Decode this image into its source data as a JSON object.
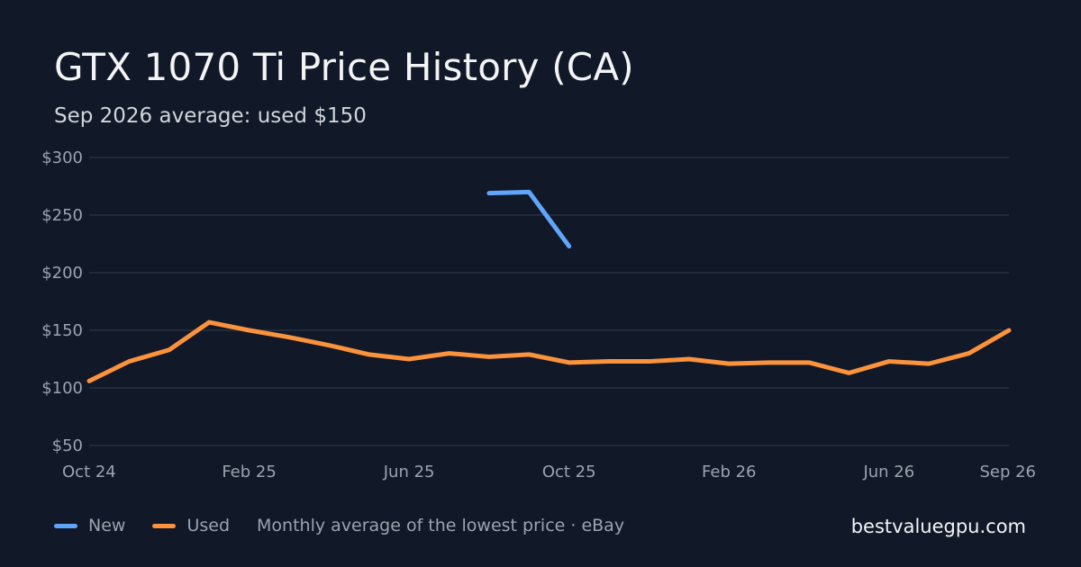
{
  "title": "GTX 1070 Ti Price History (CA)",
  "subtitle": "Sep 2026 average: used $150",
  "legend": {
    "new_label": "New",
    "used_label": "Used",
    "note": "Monthly average of the lowest price · eBay"
  },
  "brand": "bestvaluegpu.com",
  "colors": {
    "background": "#111827",
    "new": "#60a5fa",
    "used": "#fb923c",
    "grid": "#253041",
    "axis_text": "#9ca3af"
  },
  "chart_data": {
    "type": "line",
    "title": "GTX 1070 Ti Price History (CA)",
    "x": [
      "Oct 24",
      "Nov 24",
      "Dec 24",
      "Jan 25",
      "Feb 25",
      "Mar 25",
      "Apr 25",
      "May 25",
      "Jun 25",
      "Jul 25",
      "Aug 25",
      "Sep 25",
      "Oct 25",
      "Nov 25",
      "Dec 25",
      "Jan 26",
      "Feb 26",
      "Mar 26",
      "Apr 26",
      "May 26",
      "Jun 26",
      "Jul 26",
      "Aug 26",
      "Sep 26"
    ],
    "x_tick_labels": [
      "Oct 24",
      "Feb 25",
      "Jun 25",
      "Oct 25",
      "Feb 26",
      "Jun 26",
      "Sep 26"
    ],
    "y_ticks": [
      50,
      100,
      150,
      200,
      250,
      300
    ],
    "y_tick_labels": [
      "$50",
      "$100",
      "$150",
      "$200",
      "$250",
      "$300"
    ],
    "ylim": [
      50,
      300
    ],
    "grid": true,
    "legend_position": "bottom-left",
    "series": [
      {
        "name": "New",
        "color": "#60a5fa",
        "values": [
          null,
          null,
          null,
          null,
          null,
          null,
          null,
          null,
          null,
          null,
          269,
          270,
          223,
          null,
          null,
          null,
          null,
          null,
          null,
          null,
          null,
          null,
          null,
          null
        ]
      },
      {
        "name": "Used",
        "color": "#fb923c",
        "values": [
          106,
          123,
          133,
          157,
          150,
          144,
          137,
          129,
          125,
          130,
          127,
          129,
          122,
          123,
          123,
          125,
          121,
          122,
          122,
          113,
          123,
          121,
          130,
          150
        ]
      }
    ]
  }
}
